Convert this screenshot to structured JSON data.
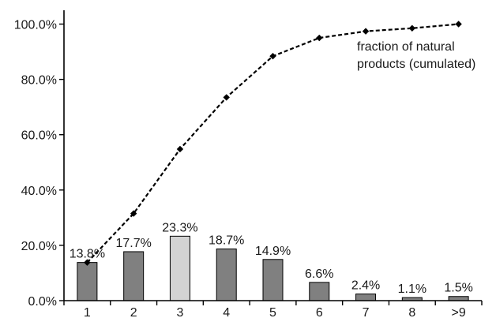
{
  "chart_data": {
    "type": "bar",
    "categories": [
      "1",
      "2",
      "3",
      "4",
      "5",
      "6",
      "7",
      "8",
      ">9"
    ],
    "series": [
      {
        "type": "bar",
        "values": [
          13.8,
          17.7,
          23.3,
          18.7,
          14.9,
          6.6,
          2.4,
          1.1,
          1.5
        ],
        "data_labels": [
          "13.8%",
          "17.7%",
          "23.3%",
          "18.7%",
          "14.9%",
          "6.6%",
          "2.4%",
          "1.1%",
          "1.5%"
        ],
        "color": "#808080",
        "highlight_index": 2,
        "highlight_color": "#d3d3d3"
      },
      {
        "type": "line",
        "name": "fraction of natural products (cumulated)",
        "values": [
          13.8,
          31.5,
          54.8,
          73.5,
          88.4,
          95.0,
          97.4,
          98.5,
          100.0
        ],
        "style": "dashed",
        "marker": "diamond",
        "color": "#000000"
      }
    ],
    "annotation": {
      "line1": "fraction of natural",
      "line2": "products (cumulated)"
    },
    "y_ticks": [
      "0.0%",
      "20.0%",
      "40.0%",
      "60.0%",
      "80.0%",
      "100.0%"
    ],
    "ylim": [
      0,
      105
    ],
    "grid": false,
    "title": "",
    "xlabel": "",
    "ylabel": ""
  }
}
